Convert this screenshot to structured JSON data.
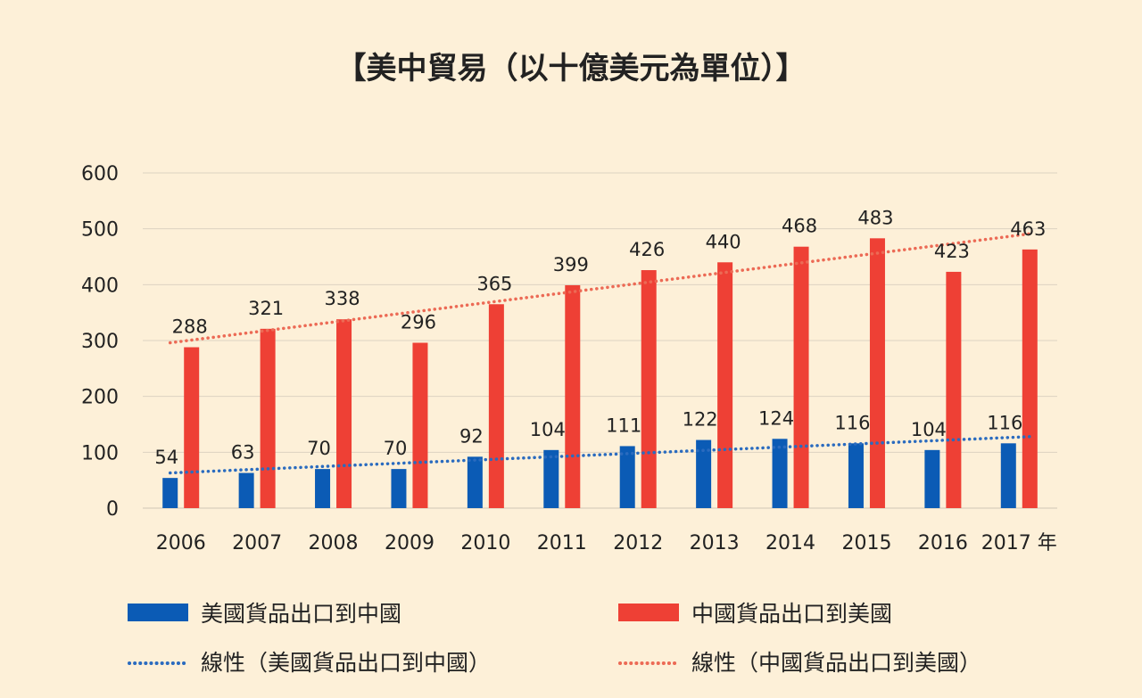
{
  "chart_data": {
    "type": "bar",
    "title": "【美中貿易（以十億美元為單位）】",
    "x_unit": "年",
    "categories": [
      "2006",
      "2007",
      "2008",
      "2009",
      "2010",
      "2011",
      "2012",
      "2013",
      "2014",
      "2015",
      "2016",
      "2017"
    ],
    "ylim": [
      0,
      600
    ],
    "yticks": [
      0,
      100,
      200,
      300,
      400,
      500,
      600
    ],
    "grid": true,
    "legend_placement": "bottom",
    "series": [
      {
        "name": "美國貨品出口到中國",
        "color": "#0b5bb5",
        "values": [
          54,
          63,
          70,
          70,
          92,
          104,
          111,
          122,
          124,
          116,
          104,
          116
        ]
      },
      {
        "name": "中國貨品出口到美國",
        "color": "#ee4035",
        "values": [
          288,
          321,
          338,
          296,
          365,
          399,
          426,
          440,
          468,
          483,
          423,
          463
        ]
      }
    ],
    "trendlines": [
      {
        "name": "線性（美國貨品出口到中國）",
        "color": "#2a6bbf",
        "style": "dotted",
        "start": 63,
        "end": 128
      },
      {
        "name": "線性（中國貨品出口到美國）",
        "color": "#ec6a55",
        "style": "dotted",
        "start": 296,
        "end": 491
      }
    ]
  }
}
